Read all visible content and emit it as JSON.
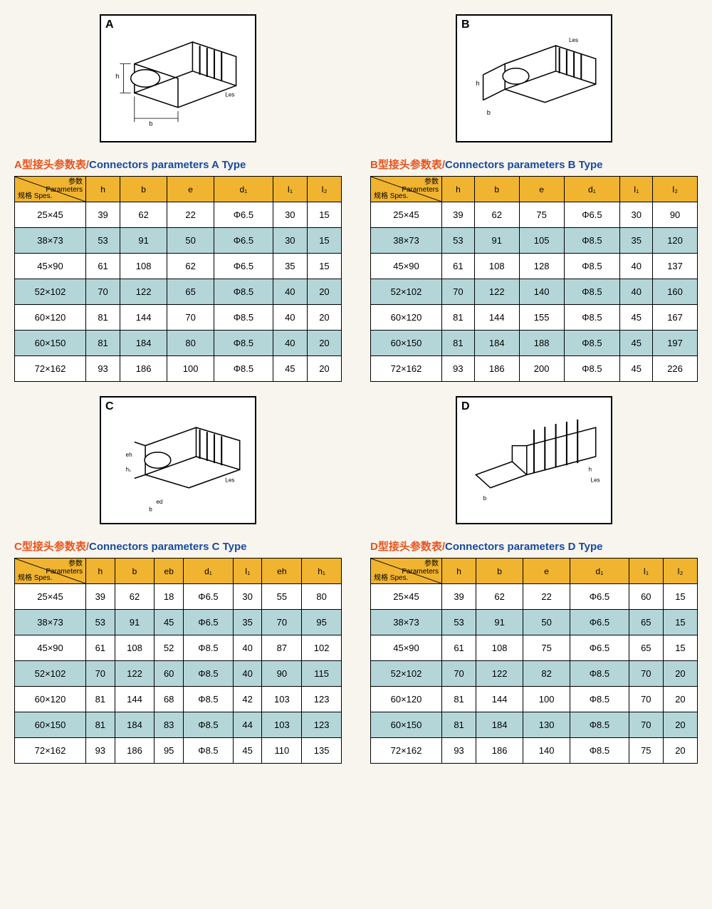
{
  "colors": {
    "page_bg": "#f7f5ee",
    "header_bg": "#f0b430",
    "alt_row_bg": "#b5d6d8",
    "odd_row_bg": "#ffffff",
    "border": "#000000",
    "title_cn": "#e8531d",
    "title_en": "#1a4aa0"
  },
  "header_corner": {
    "top_cn": "参数",
    "top_en": "Parameters",
    "bottom": "规格 Spes."
  },
  "diagrams": [
    "A",
    "B",
    "C",
    "D"
  ],
  "tables": {
    "A": {
      "title_cn": "A型接头参数表/",
      "title_en": "Connectors parameters A Type",
      "columns": [
        "h",
        "b",
        "e",
        "d₁",
        "I₁",
        "I₂"
      ],
      "rows": [
        {
          "spec": "25×45",
          "cells": [
            "39",
            "62",
            "22",
            "Φ6.5",
            "30",
            "15"
          ]
        },
        {
          "spec": "38×73",
          "cells": [
            "53",
            "91",
            "50",
            "Φ6.5",
            "30",
            "15"
          ]
        },
        {
          "spec": "45×90",
          "cells": [
            "61",
            "108",
            "62",
            "Φ6.5",
            "35",
            "15"
          ]
        },
        {
          "spec": "52×102",
          "cells": [
            "70",
            "122",
            "65",
            "Φ8.5",
            "40",
            "20"
          ]
        },
        {
          "spec": "60×120",
          "cells": [
            "81",
            "144",
            "70",
            "Φ8.5",
            "40",
            "20"
          ]
        },
        {
          "spec": "60×150",
          "cells": [
            "81",
            "184",
            "80",
            "Φ8.5",
            "40",
            "20"
          ]
        },
        {
          "spec": "72×162",
          "cells": [
            "93",
            "186",
            "100",
            "Φ8.5",
            "45",
            "20"
          ]
        }
      ]
    },
    "B": {
      "title_cn": "B型接头参数表/",
      "title_en": "Connectors parameters B Type",
      "columns": [
        "h",
        "b",
        "e",
        "d₁",
        "I₁",
        "I₂"
      ],
      "rows": [
        {
          "spec": "25×45",
          "cells": [
            "39",
            "62",
            "75",
            "Φ6.5",
            "30",
            "90"
          ]
        },
        {
          "spec": "38×73",
          "cells": [
            "53",
            "91",
            "105",
            "Φ8.5",
            "35",
            "120"
          ]
        },
        {
          "spec": "45×90",
          "cells": [
            "61",
            "108",
            "128",
            "Φ8.5",
            "40",
            "137"
          ]
        },
        {
          "spec": "52×102",
          "cells": [
            "70",
            "122",
            "140",
            "Φ8.5",
            "40",
            "160"
          ]
        },
        {
          "spec": "60×120",
          "cells": [
            "81",
            "144",
            "155",
            "Φ8.5",
            "45",
            "167"
          ]
        },
        {
          "spec": "60×150",
          "cells": [
            "81",
            "184",
            "188",
            "Φ8.5",
            "45",
            "197"
          ]
        },
        {
          "spec": "72×162",
          "cells": [
            "93",
            "186",
            "200",
            "Φ8.5",
            "45",
            "226"
          ]
        }
      ]
    },
    "C": {
      "title_cn": "C型接头参数表/",
      "title_en": "Connectors parameters C Type",
      "columns": [
        "h",
        "b",
        "eb",
        "d₁",
        "I₁",
        "eh",
        "h₁"
      ],
      "rows": [
        {
          "spec": "25×45",
          "cells": [
            "39",
            "62",
            "18",
            "Φ6.5",
            "30",
            "55",
            "80"
          ]
        },
        {
          "spec": "38×73",
          "cells": [
            "53",
            "91",
            "45",
            "Φ6.5",
            "35",
            "70",
            "95"
          ]
        },
        {
          "spec": "45×90",
          "cells": [
            "61",
            "108",
            "52",
            "Φ8.5",
            "40",
            "87",
            "102"
          ]
        },
        {
          "spec": "52×102",
          "cells": [
            "70",
            "122",
            "60",
            "Φ8.5",
            "40",
            "90",
            "115"
          ]
        },
        {
          "spec": "60×120",
          "cells": [
            "81",
            "144",
            "68",
            "Φ8.5",
            "42",
            "103",
            "123"
          ]
        },
        {
          "spec": "60×150",
          "cells": [
            "81",
            "184",
            "83",
            "Φ8.5",
            "44",
            "103",
            "123"
          ]
        },
        {
          "spec": "72×162",
          "cells": [
            "93",
            "186",
            "95",
            "Φ8.5",
            "45",
            "110",
            "135"
          ]
        }
      ]
    },
    "D": {
      "title_cn": "D型接头参数表/",
      "title_en": "Connectors parameters D Type",
      "columns": [
        "h",
        "b",
        "e",
        "d₁",
        "I₁",
        "I₂"
      ],
      "rows": [
        {
          "spec": "25×45",
          "cells": [
            "39",
            "62",
            "22",
            "Φ6.5",
            "60",
            "15"
          ]
        },
        {
          "spec": "38×73",
          "cells": [
            "53",
            "91",
            "50",
            "Φ6.5",
            "65",
            "15"
          ]
        },
        {
          "spec": "45×90",
          "cells": [
            "61",
            "108",
            "75",
            "Φ6.5",
            "65",
            "15"
          ]
        },
        {
          "spec": "52×102",
          "cells": [
            "70",
            "122",
            "82",
            "Φ8.5",
            "70",
            "20"
          ]
        },
        {
          "spec": "60×120",
          "cells": [
            "81",
            "144",
            "100",
            "Φ8.5",
            "70",
            "20"
          ]
        },
        {
          "spec": "60×150",
          "cells": [
            "81",
            "184",
            "130",
            "Φ8.5",
            "70",
            "20"
          ]
        },
        {
          "spec": "72×162",
          "cells": [
            "93",
            "186",
            "140",
            "Φ8.5",
            "75",
            "20"
          ]
        }
      ]
    }
  }
}
